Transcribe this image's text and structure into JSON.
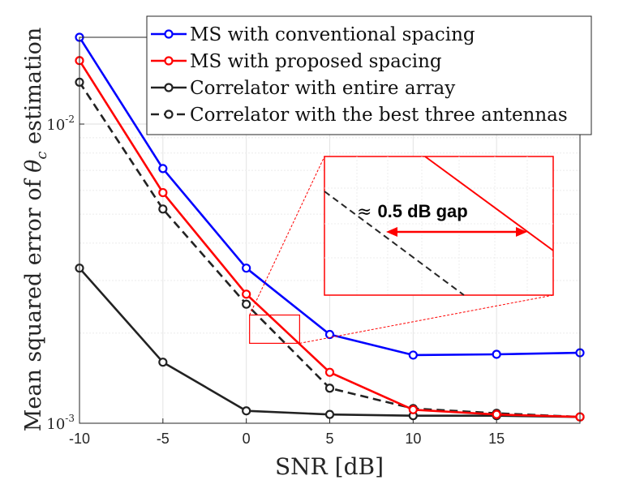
{
  "chart_data": {
    "type": "line",
    "title": "",
    "xlabel": "SNR [dB]",
    "ylabel_prefix": "Mean squared error of ",
    "ylabel_symbol": "θ",
    "ylabel_sub": "c",
    "ylabel_suffix": " estimation",
    "x": [
      -10,
      -5,
      0,
      5,
      10,
      15,
      20
    ],
    "xlim": [
      -10,
      20
    ],
    "xticks": [
      -10,
      -5,
      0,
      5,
      10,
      15
    ],
    "xtick_labels": [
      "-10",
      "-5",
      "0",
      "5",
      "10",
      "15"
    ],
    "yscale": "log",
    "ylim": [
      0.001,
      0.0195
    ],
    "yticks": [
      {
        "value": 0.01,
        "base": "10",
        "exp": "-2"
      },
      {
        "value": 0.001,
        "base": "10",
        "exp": "-3"
      }
    ],
    "grid": true,
    "legend_position": "top-right",
    "series": [
      {
        "name": "MS with conventional spacing",
        "color": "#0000ff",
        "dashed": false,
        "values": [
          0.0195,
          0.0071,
          0.0033,
          0.00198,
          0.00169,
          0.0017,
          0.00172
        ]
      },
      {
        "name": "MS with proposed spacing",
        "color": "#ff0000",
        "dashed": false,
        "values": [
          0.0163,
          0.0059,
          0.0027,
          0.00148,
          0.00111,
          0.00107,
          0.00105
        ]
      },
      {
        "name": "Correlator with entire array",
        "color": "#222222",
        "dashed": false,
        "values": [
          0.0033,
          0.0016,
          0.0011,
          0.00107,
          0.00106,
          0.00106,
          0.00105
        ]
      },
      {
        "name": "Correlator with the best three antennas",
        "color": "#222222",
        "dashed": true,
        "values": [
          0.0138,
          0.0052,
          0.0025,
          0.00131,
          0.00112,
          0.00108,
          0.00105
        ]
      }
    ],
    "annotation": {
      "prefix": "≈",
      "text": "0.5 dB gap",
      "zoom_x": [
        0,
        3
      ],
      "zoom_y": [
        0.00185,
        0.0023
      ]
    }
  }
}
